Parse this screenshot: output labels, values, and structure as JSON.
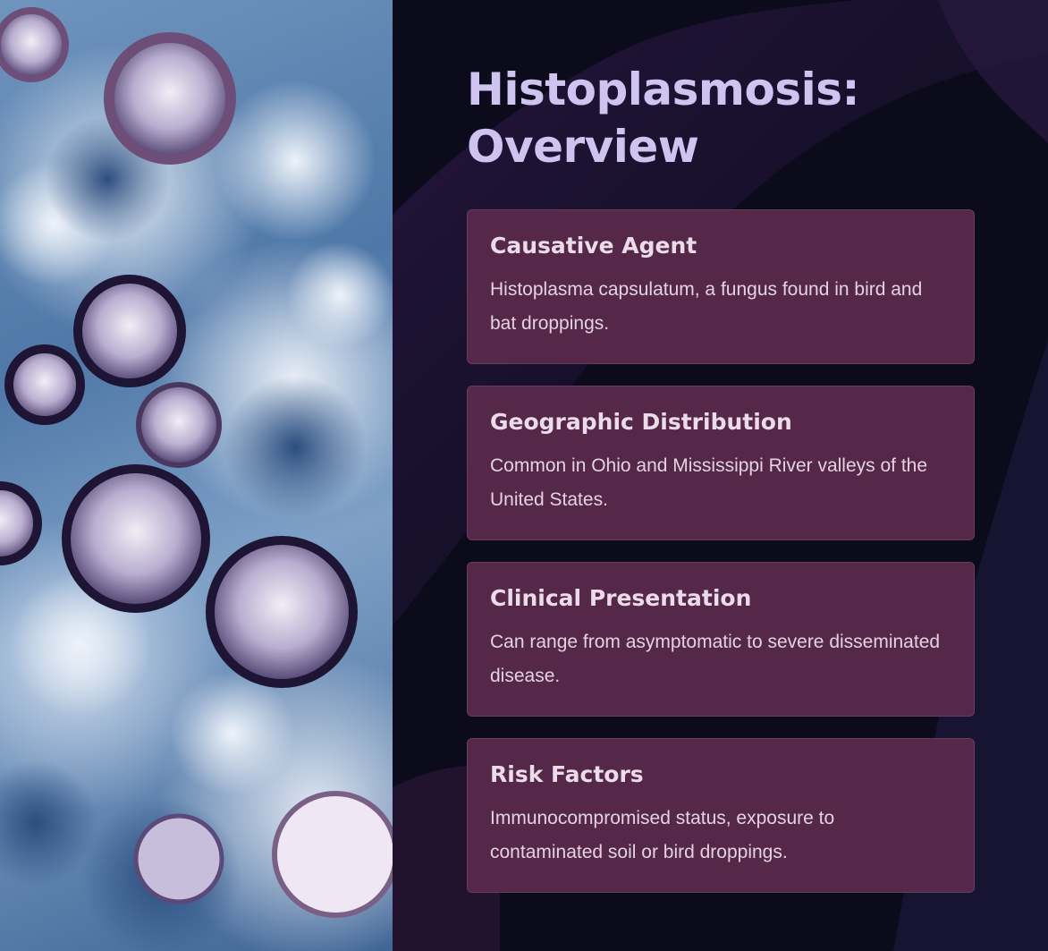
{
  "slide": {
    "title": "Histoplasmosis: Overview",
    "image_alt": "Microscopy image of Histoplasma capsulatum yeast cells",
    "colors": {
      "background": "#0b0b1c",
      "title": "#cfc3f0",
      "card_background": "#55284a",
      "card_text": "#e3d3e0"
    },
    "cards": [
      {
        "title": "Causative Agent",
        "text": "Histoplasma capsulatum, a fungus found in bird and bat droppings."
      },
      {
        "title": "Geographic Distribution",
        "text": "Common in Ohio and Mississippi River valleys of the United States."
      },
      {
        "title": "Clinical Presentation",
        "text": "Can range from asymptomatic to severe disseminated disease."
      },
      {
        "title": "Risk Factors",
        "text": "Immunocompromised status, exposure to contaminated soil or bird droppings."
      }
    ]
  }
}
